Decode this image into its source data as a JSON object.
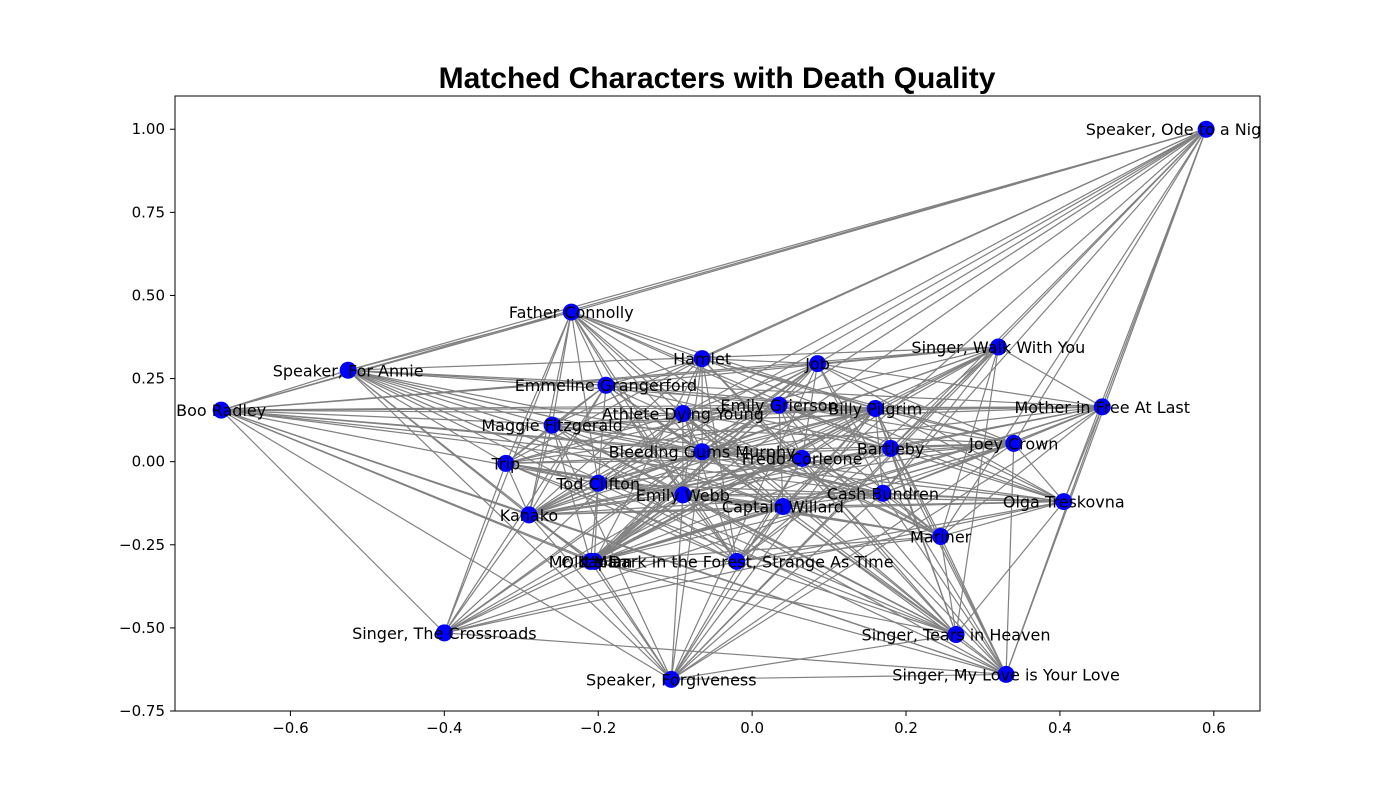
{
  "chart_data": {
    "type": "network",
    "title": "Matched Characters with Death Quality",
    "xlabel": "",
    "ylabel": "",
    "xlim": [
      -0.75,
      0.66
    ],
    "ylim": [
      -0.75,
      1.1
    ],
    "x_ticks": [
      -0.6,
      -0.4,
      -0.2,
      0.0,
      0.2,
      0.4,
      0.6
    ],
    "x_tick_labels": [
      "−0.6",
      "−0.4",
      "−0.2",
      "0.0",
      "0.2",
      "0.4",
      "0.6"
    ],
    "y_ticks": [
      1.0,
      0.75,
      0.5,
      0.25,
      0.0,
      -0.25,
      -0.5,
      -0.75
    ],
    "y_tick_labels": [
      "1.00",
      "0.75",
      "0.50",
      "0.25",
      "0.00",
      "−0.25",
      "−0.50",
      "−0.75"
    ],
    "node_color": "#0000ff",
    "edge_color": "#808080",
    "nodes": [
      {
        "label": "Speaker, Ode to a Nightingale",
        "x": 0.59,
        "y": 1.0
      },
      {
        "label": "Father Connolly",
        "x": -0.235,
        "y": 0.45
      },
      {
        "label": "Speaker, For Annie",
        "x": -0.525,
        "y": 0.275
      },
      {
        "label": "Boo Radley",
        "x": -0.69,
        "y": 0.155
      },
      {
        "label": "Hamlet",
        "x": -0.065,
        "y": 0.31
      },
      {
        "label": "Job",
        "x": 0.085,
        "y": 0.295
      },
      {
        "label": "Singer, Walk With You",
        "x": 0.32,
        "y": 0.345
      },
      {
        "label": "Emmeline Grangerford",
        "x": -0.19,
        "y": 0.23
      },
      {
        "label": "Emily Grierson",
        "x": 0.035,
        "y": 0.17
      },
      {
        "label": "Billy Pilgrim",
        "x": 0.16,
        "y": 0.16
      },
      {
        "label": "Mother in Free At Last",
        "x": 0.455,
        "y": 0.165
      },
      {
        "label": "Athlete Dying Young",
        "x": -0.09,
        "y": 0.145
      },
      {
        "label": "Maggie Fitzgerald",
        "x": -0.26,
        "y": 0.11
      },
      {
        "label": "Bleeding Gums Murphy",
        "x": -0.065,
        "y": 0.03
      },
      {
        "label": "Bartleby",
        "x": 0.18,
        "y": 0.04
      },
      {
        "label": "Joey Crown",
        "x": 0.34,
        "y": 0.055
      },
      {
        "label": "Fredo Corleone",
        "x": 0.065,
        "y": 0.01
      },
      {
        "label": "Trip",
        "x": -0.32,
        "y": -0.005
      },
      {
        "label": "Tod Clifton",
        "x": -0.2,
        "y": -0.065
      },
      {
        "label": "Emily Webb",
        "x": -0.09,
        "y": -0.1
      },
      {
        "label": "Cash Bundren",
        "x": 0.17,
        "y": -0.095
      },
      {
        "label": "Olga Treskovna",
        "x": 0.405,
        "y": -0.12
      },
      {
        "label": "Captain Willard",
        "x": 0.04,
        "y": -0.135
      },
      {
        "label": "Kanako",
        "x": -0.29,
        "y": -0.16
      },
      {
        "label": "Mariner",
        "x": 0.245,
        "y": -0.225
      },
      {
        "label": "Old Man",
        "x": -0.205,
        "y": -0.3
      },
      {
        "label": "Mr. Kaplan",
        "x": -0.21,
        "y": -0.3
      },
      {
        "label": "It's Dark in the Forest, Strange As Time",
        "x": -0.02,
        "y": -0.3
      },
      {
        "label": "Singer, The Crossroads",
        "x": -0.4,
        "y": -0.515
      },
      {
        "label": "Singer, Tears in Heaven",
        "x": 0.265,
        "y": -0.52
      },
      {
        "label": "Speaker, Forgiveness",
        "x": -0.105,
        "y": -0.655
      },
      {
        "label": "Singer, My Love is Your Love",
        "x": 0.33,
        "y": -0.64
      }
    ]
  }
}
